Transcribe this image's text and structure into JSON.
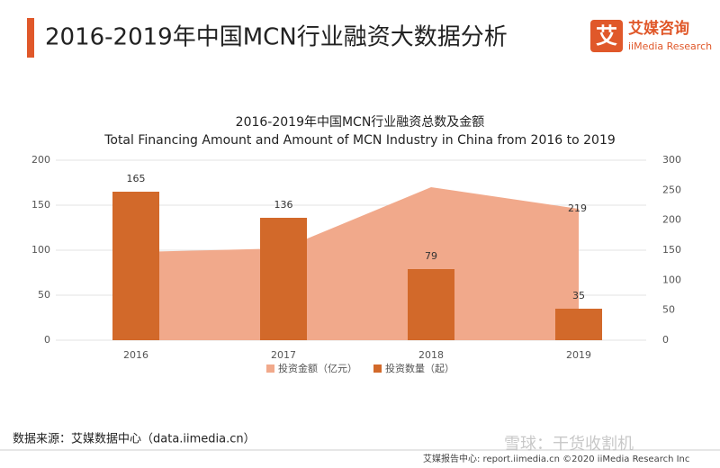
{
  "header": {
    "title": "2016-2019年中国MCN行业融资大数据分析",
    "logo_icon": "艾",
    "logo_cn": "艾媒咨询",
    "logo_en": "iiMedia Research"
  },
  "chart_data": {
    "type": "combo",
    "title": "2016-2019年中国MCN行业融资总数及金额",
    "subtitle": "Total Financing Amount and Amount of MCN Industry in China from 2016 to 2019",
    "categories": [
      "2016",
      "2017",
      "2018",
      "2019"
    ],
    "series": [
      {
        "name": "投资金额（亿元）",
        "type": "area",
        "axis": "y2",
        "color": "#f1a98b",
        "values": [
          147,
          153,
          255,
          219
        ],
        "value_labels": [
          null,
          null,
          null,
          "219"
        ]
      },
      {
        "name": "投资数量（起）",
        "type": "bar",
        "axis": "y",
        "color": "#d2692a",
        "values": [
          165,
          136,
          79,
          35
        ]
      }
    ],
    "ylim": [
      0,
      200
    ],
    "yticks": [
      0,
      50,
      100,
      150,
      200
    ],
    "y2lim": [
      0,
      300
    ],
    "y2ticks": [
      0,
      50,
      100,
      150,
      200,
      250,
      300
    ],
    "grid": true,
    "legend": "bottom"
  },
  "source": "数据来源：艾媒数据中心（data.iimedia.cn）",
  "footer": {
    "report": "艾媒报告中心: report.iimedia.cn ©2020  iiMedia Research  Inc",
    "watermark": "雪球：干货收割机"
  }
}
